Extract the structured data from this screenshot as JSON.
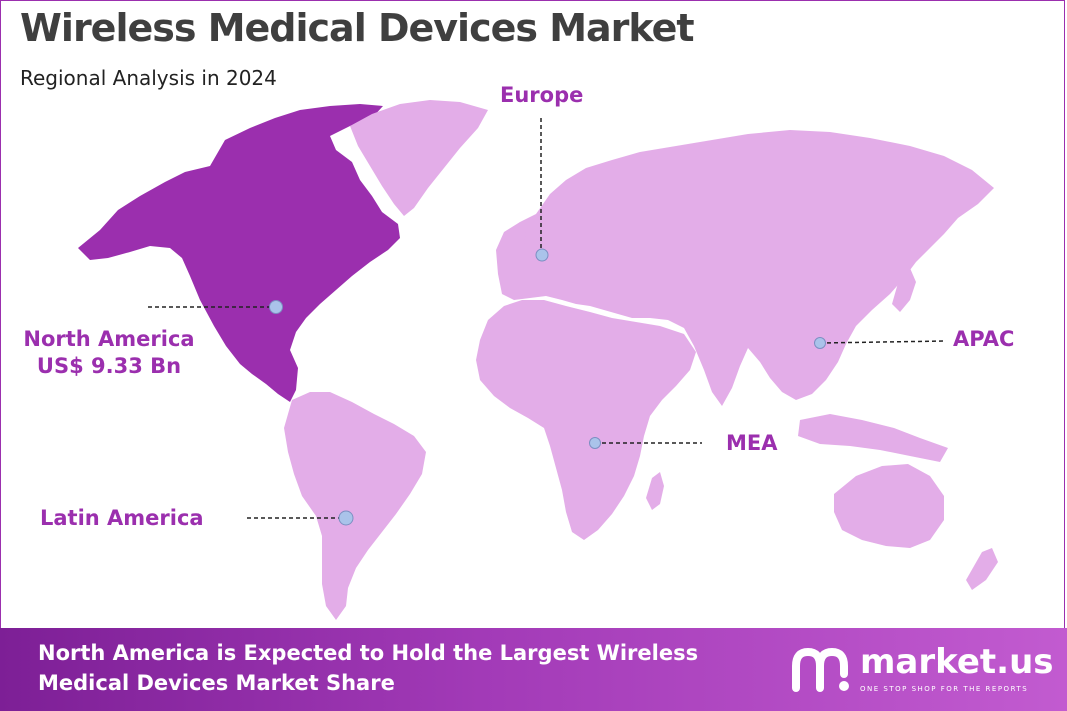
{
  "title": "Wireless Medical Devices Market",
  "subtitle": "Regional Analysis in 2024",
  "colors": {
    "highlight_region": "#9b2fae",
    "other_regions": "#e3ade8",
    "label": "#9b2fae",
    "marker": "#aac3ea",
    "footer_start": "#7d1f96",
    "footer_end": "#c25bd0"
  },
  "regions": {
    "north_america": {
      "name": "North America",
      "value": "US$ 9.33  Bn",
      "highlighted": true
    },
    "europe": {
      "name": "Europe"
    },
    "apac": {
      "name": "APAC"
    },
    "mea": {
      "name": "MEA"
    },
    "latin_america": {
      "name": "Latin America"
    }
  },
  "footer": {
    "text": "North America is Expected to Hold the Largest Wireless Medical Devices Market Share",
    "brand_name": "market.us",
    "brand_tagline": "ONE STOP SHOP FOR THE REPORTS",
    "brand_icon": "market-us-logo-icon"
  }
}
